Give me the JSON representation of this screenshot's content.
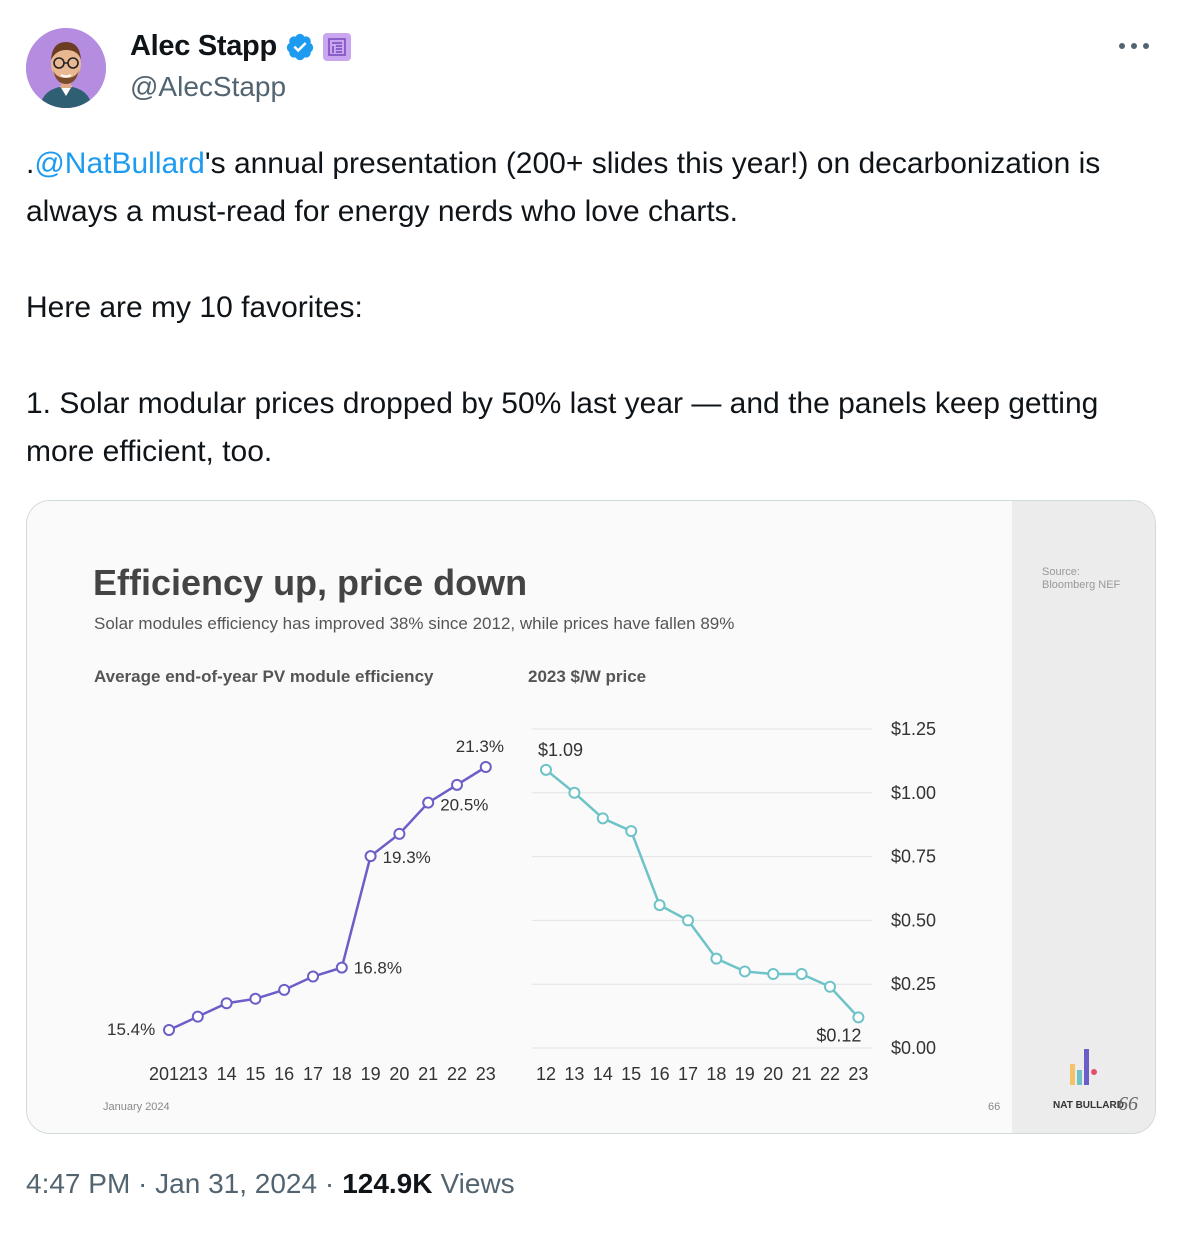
{
  "author": {
    "name": "Alec Stapp",
    "handle": "@AlecStapp"
  },
  "icons": {
    "verified": "verified-badge-icon",
    "affiliation": "affiliation-badge-icon",
    "more": "more-options-icon",
    "accent": "#1d9bf0"
  },
  "tweet": {
    "text_prefix": ".",
    "mention": "@NatBullard",
    "text_body": "'s annual presentation (200+ slides this year!) on decarbonization is always a must-read for energy nerds who love charts.\n\nHere are my 10 favorites:\n\n1. Solar modular prices dropped by 50% last year — and the panels keep getting more efficient, too."
  },
  "slide": {
    "title": "Efficiency up, price down",
    "subtitle": "Solar modules efficiency has improved 38% since 2012, while prices have fallen 89%",
    "source_label": "Source:",
    "source_name": "Bloomberg NEF",
    "date": "January 2024",
    "page_number": "66",
    "brand": "NAT BULLARD",
    "brand_number": "66"
  },
  "chart_data": [
    {
      "type": "line",
      "title": "Average end-of-year PV module efficiency",
      "x": [
        "2012",
        "13",
        "14",
        "15",
        "16",
        "17",
        "18",
        "19",
        "20",
        "21",
        "22",
        "23"
      ],
      "values": [
        15.4,
        15.7,
        16.0,
        16.1,
        16.3,
        16.6,
        16.8,
        19.3,
        19.8,
        20.5,
        20.9,
        21.3
      ],
      "unit": "%",
      "labels": [
        {
          "index": 0,
          "text": "15.4%"
        },
        {
          "index": 6,
          "text": "16.8%"
        },
        {
          "index": 7,
          "text": "19.3%"
        },
        {
          "index": 9,
          "text": "20.5%"
        },
        {
          "index": 11,
          "text": "21.3%"
        }
      ],
      "color": "#6b5fc7"
    },
    {
      "type": "line",
      "title": "2023 $/W price",
      "x": [
        "12",
        "13",
        "14",
        "15",
        "16",
        "17",
        "18",
        "19",
        "20",
        "21",
        "22",
        "23"
      ],
      "values": [
        1.09,
        1.0,
        0.9,
        0.85,
        0.56,
        0.5,
        0.35,
        0.3,
        0.29,
        0.29,
        0.24,
        0.12
      ],
      "ylim": [
        0,
        1.25
      ],
      "yticks": [
        "$0.00",
        "$0.25",
        "$0.50",
        "$0.75",
        "$1.00",
        "$1.25"
      ],
      "labels": [
        {
          "index": 0,
          "text": "$1.09"
        },
        {
          "index": 11,
          "text": "$0.12"
        }
      ],
      "color": "#6ec3c8"
    }
  ],
  "meta": {
    "time": "4:47 PM · Jan 31, 2024 ·",
    "views_count": "124.9K",
    "views_label": "Views"
  }
}
